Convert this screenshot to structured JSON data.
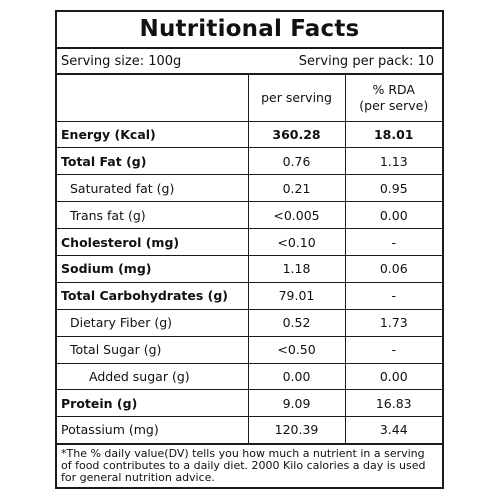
{
  "title": "Nutritional Facts",
  "serving": {
    "size": "Serving size: 100g",
    "per_pack": "Serving per pack: 10"
  },
  "headers": {
    "per_serving": "per serving",
    "rda_line1": "% RDA",
    "rda_line2": "(per serve)"
  },
  "rows": [
    {
      "name": "Energy (Kcal)",
      "per_serving": "360.28",
      "rda": "18.01"
    },
    {
      "name": "Total Fat (g)",
      "per_serving": "0.76",
      "rda": "1.13"
    },
    {
      "name": "Saturated fat (g)",
      "per_serving": "0.21",
      "rda": "0.95"
    },
    {
      "name": "Trans fat (g)",
      "per_serving": "<0.005",
      "rda": "0.00"
    },
    {
      "name": "Cholesterol (mg)",
      "per_serving": "<0.10",
      "rda": "-"
    },
    {
      "name": "Sodium (mg)",
      "per_serving": "1.18",
      "rda": "0.06"
    },
    {
      "name": "Total Carbohydrates (g)",
      "per_serving": "79.01",
      "rda": "-"
    },
    {
      "name": "Dietary Fiber (g)",
      "per_serving": "0.52",
      "rda": "1.73"
    },
    {
      "name": "Total Sugar (g)",
      "per_serving": "<0.50",
      "rda": "-"
    },
    {
      "name": "Added sugar (g)",
      "per_serving": "0.00",
      "rda": "0.00"
    },
    {
      "name": "Protein (g)",
      "per_serving": "9.09",
      "rda": "16.83"
    },
    {
      "name": "Potassium (mg)",
      "per_serving": "120.39",
      "rda": "3.44"
    }
  ],
  "footnote": "*The % daily value(DV) tells you how much a nutrient in a serving of food contributes to a daily diet. 2000 Kilo calories a day is used for general nutrition advice."
}
